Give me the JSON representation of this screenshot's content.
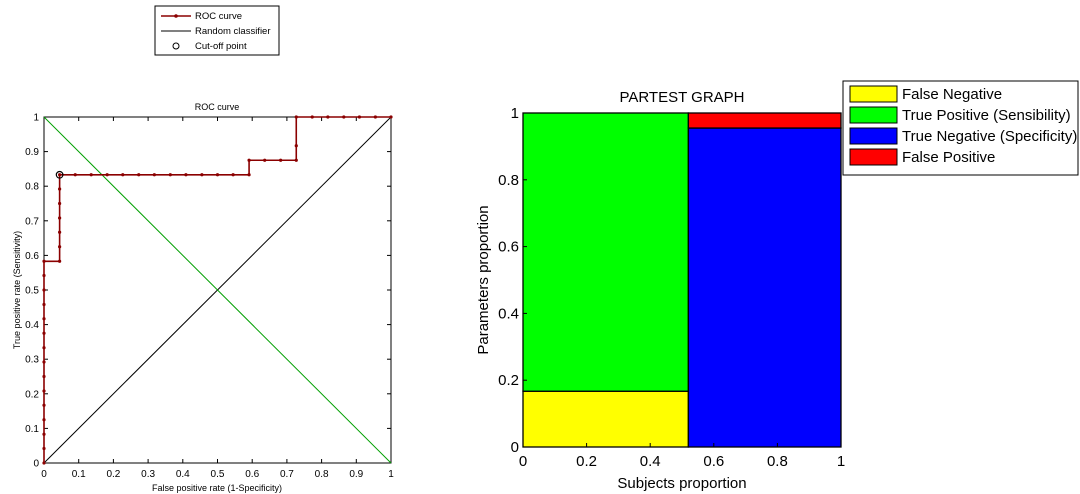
{
  "chart_data": [
    {
      "type": "line",
      "title": "ROC curve",
      "xlabel": "False positive rate (1-Specificity)",
      "ylabel": "True positive rate (Sensitivity)",
      "xlim": [
        0,
        1
      ],
      "ylim": [
        0,
        1
      ],
      "xticks": [
        "0",
        "0.1",
        "0.2",
        "0.3",
        "0.4",
        "0.5",
        "0.6",
        "0.7",
        "0.8",
        "0.9",
        "1"
      ],
      "yticks": [
        "0",
        "0.1",
        "0.2",
        "0.3",
        "0.4",
        "0.5",
        "0.6",
        "0.7",
        "0.8",
        "0.9",
        "1"
      ],
      "grid": false,
      "legend_position": "above",
      "legend": [
        "ROC curve",
        "Random classifier",
        "Cut-off point"
      ],
      "series": [
        {
          "name": "ROC curve",
          "color": "#8B0000",
          "x": [
            0,
            0,
            0,
            0,
            0,
            0,
            0,
            0,
            0,
            0,
            0,
            0,
            0,
            0,
            0,
            0.045,
            0.045,
            0.045,
            0.045,
            0.045,
            0.045,
            0.045,
            0.09,
            0.136,
            0.182,
            0.227,
            0.273,
            0.318,
            0.364,
            0.409,
            0.455,
            0.5,
            0.545,
            0.591,
            0.591,
            0.636,
            0.682,
            0.727,
            0.727,
            0.727,
            0.773,
            0.818,
            0.864,
            0.909,
            0.955,
            1
          ],
          "y": [
            0,
            0.042,
            0.083,
            0.125,
            0.167,
            0.208,
            0.25,
            0.292,
            0.333,
            0.375,
            0.417,
            0.458,
            0.5,
            0.542,
            0.583,
            0.583,
            0.625,
            0.667,
            0.708,
            0.75,
            0.792,
            0.833,
            0.833,
            0.833,
            0.833,
            0.833,
            0.833,
            0.833,
            0.833,
            0.833,
            0.833,
            0.833,
            0.833,
            0.833,
            0.875,
            0.875,
            0.875,
            0.875,
            0.917,
            1,
            1,
            1,
            1,
            1,
            1,
            1
          ]
        },
        {
          "name": "Random classifier",
          "color": "#000000",
          "x": [
            0,
            1
          ],
          "y": [
            0,
            1
          ]
        },
        {
          "name": "",
          "color": "#00A000",
          "x": [
            0,
            1
          ],
          "y": [
            1,
            0
          ]
        },
        {
          "name": "Cut-off point",
          "type": "scatter",
          "color": "#000000",
          "x": [
            0.045
          ],
          "y": [
            0.833
          ]
        }
      ]
    },
    {
      "type": "bar",
      "title": "PARTEST GRAPH",
      "xlabel": "Subjects proportion",
      "ylabel": "Parameters proportion",
      "xlim": [
        0,
        1
      ],
      "ylim": [
        0,
        1
      ],
      "xticks": [
        "0",
        "0.2",
        "0.4",
        "0.6",
        "0.8",
        "1"
      ],
      "yticks": [
        "0",
        "0.2",
        "0.4",
        "0.6",
        "0.8",
        "1"
      ],
      "grid": false,
      "legend_position": "top-right",
      "legend": [
        "False Negative",
        "True Positive (Sensibility)",
        "True Negative (Specificity)",
        "False Positive"
      ],
      "colors": {
        "false_negative": "#FFFF00",
        "true_positive": "#00FF00",
        "true_negative": "#0000FF",
        "false_positive": "#FF0000"
      },
      "segments": [
        {
          "name": "False Negative",
          "x0": 0,
          "x1": 0.52,
          "y0": 0,
          "y1": 0.167,
          "color": "#FFFF00"
        },
        {
          "name": "True Positive (Sensibility)",
          "x0": 0,
          "x1": 0.52,
          "y0": 0.167,
          "y1": 1,
          "color": "#00FF00"
        },
        {
          "name": "True Negative (Specificity)",
          "x0": 0.52,
          "x1": 1,
          "y0": 0,
          "y1": 0.955,
          "color": "#0000FF"
        },
        {
          "name": "False Positive",
          "x0": 0.52,
          "x1": 1,
          "y0": 0.955,
          "y1": 1,
          "color": "#FF0000"
        }
      ]
    }
  ]
}
